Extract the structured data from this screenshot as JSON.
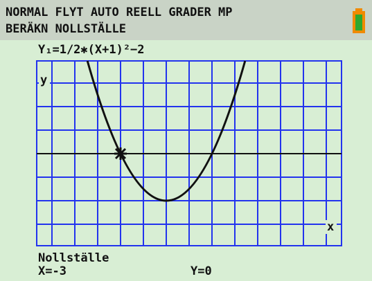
{
  "header": {
    "line1": "NORMAL FLYT AUTO REELL GRADER MP",
    "line2": "BERÄKN NOLLSTÄLLE"
  },
  "graph": {
    "function": "Y₁=1/2✱(X+1)²−2",
    "y_label": "y",
    "x_label": "x"
  },
  "footer": {
    "title": "Nollställe",
    "x_result": "X=-3",
    "y_result": "Y=0"
  }
}
